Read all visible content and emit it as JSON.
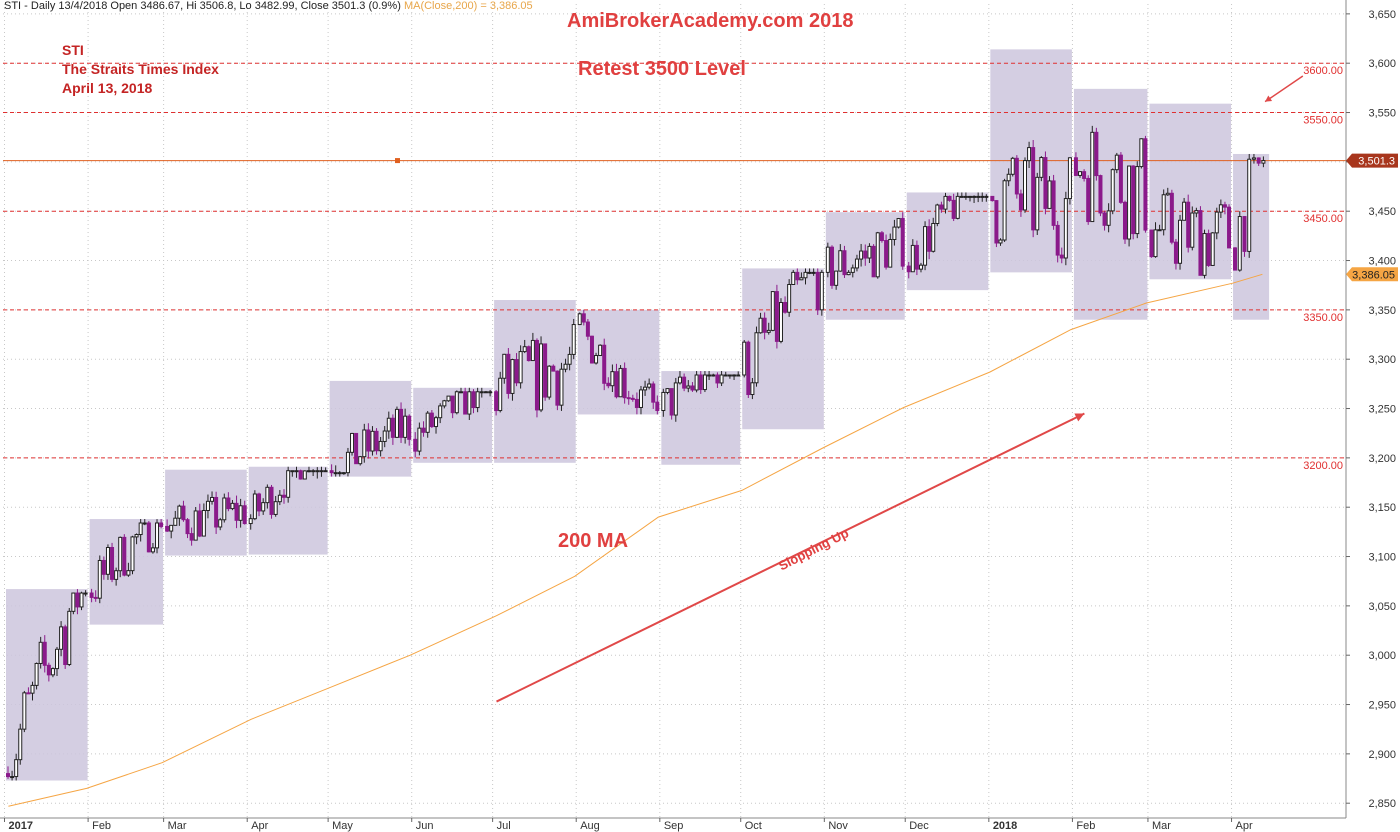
{
  "header": {
    "quote": "STI - Daily 13/4/2018 Open 3486.67, Hi 3506.8, Lo 3482.99, Close 3501.3 (0.9%)",
    "ma": "MA(Close,200) = 3,386.05"
  },
  "annotations": {
    "brand": "AmiBrokerAcademy.com  2018",
    "retest": "Retest 3500 Level",
    "ma_label": "200 MA",
    "slope": "Slopping Up",
    "symbol": "STI",
    "index_name": "The Straits Times Index",
    "date": "April 13, 2018"
  },
  "colors": {
    "up_candle": "#222222",
    "down_candle": "#8b1a8b",
    "ma_line": "#f5a544",
    "close_line": "#e06020",
    "level_line": "#e03030",
    "range_box": "#cdc6dd",
    "arrow": "#e04848",
    "close_badge": "#a8361d",
    "ma_badge": "#f5a544"
  },
  "chart_data": {
    "type": "candlestick",
    "ylim": [
      2835,
      3660
    ],
    "y_ticks": [
      2850,
      2900,
      2950,
      3000,
      3050,
      3100,
      3150,
      3200,
      3250,
      3300,
      3350,
      3400,
      3450,
      3500,
      3550,
      3600,
      3650
    ],
    "y_tick_labels": [
      "2,850",
      "2,900",
      "2,950",
      "3,000",
      "3,050",
      "3,100",
      "3,150",
      "3,200",
      "3,250",
      "3,300",
      "3,350",
      "3,400",
      "3,450",
      "3,500",
      "3,550",
      "3,600",
      "3,650"
    ],
    "x_labels": [
      "2017",
      "Feb",
      "Mar",
      "Apr",
      "May",
      "Jun",
      "Jul",
      "Aug",
      "Sep",
      "Oct",
      "Nov",
      "Dec",
      "2018",
      "Feb",
      "Mar",
      "Apr"
    ],
    "x_labels_bold": [
      "2017",
      "2018"
    ],
    "level_lines": [
      {
        "value": 3600,
        "label": "3600.00"
      },
      {
        "value": 3550,
        "label": "3550.00"
      },
      {
        "value": 3450,
        "label": "3450.00"
      },
      {
        "value": 3350,
        "label": "3350.00"
      },
      {
        "value": 3200,
        "label": "3200.00"
      }
    ],
    "last_close": {
      "value": 3501.3,
      "label": "3,501.3"
    },
    "ma200": {
      "value": 3386.05,
      "label": "3,386.05"
    },
    "monthly_ranges": [
      {
        "month": "Jan 2017",
        "low": 2873,
        "high": 3067
      },
      {
        "month": "Feb 2017",
        "low": 3031,
        "high": 3138
      },
      {
        "month": "Mar 2017",
        "low": 3101,
        "high": 3188
      },
      {
        "month": "Apr 2017",
        "low": 3102,
        "high": 3191
      },
      {
        "month": "May 2017",
        "low": 3181,
        "high": 3278
      },
      {
        "month": "Jun 2017",
        "low": 3195,
        "high": 3271
      },
      {
        "month": "Jul 2017",
        "low": 3195,
        "high": 3360
      },
      {
        "month": "Aug 2017",
        "low": 3244,
        "high": 3350
      },
      {
        "month": "Sep 2017",
        "low": 3193,
        "high": 3288
      },
      {
        "month": "Oct 2017",
        "low": 3229,
        "high": 3392
      },
      {
        "month": "Nov 2017",
        "low": 3340,
        "high": 3449
      },
      {
        "month": "Dec 2017",
        "low": 3370,
        "high": 3469
      },
      {
        "month": "Jan 2018",
        "low": 3388,
        "high": 3614
      },
      {
        "month": "Feb 2018",
        "low": 3340,
        "high": 3574
      },
      {
        "month": "Mar 2018",
        "low": 3381,
        "high": 3559
      },
      {
        "month": "Apr 2018",
        "low": 3340,
        "high": 3508
      }
    ],
    "ma200_series": {
      "x": [
        "2017-01-03",
        "2017-02-01",
        "2017-03-01",
        "2017-04-03",
        "2017-05-02",
        "2017-06-01",
        "2017-07-03",
        "2017-08-01",
        "2017-09-01",
        "2017-10-02",
        "2017-11-01",
        "2017-12-01",
        "2018-01-02",
        "2018-02-01",
        "2018-03-01",
        "2018-04-02",
        "2018-04-13"
      ],
      "values": [
        2847,
        2865,
        2891,
        2935,
        2967,
        3000,
        3040,
        3080,
        3140,
        3167,
        3210,
        3251,
        3287,
        3330,
        3357,
        3377,
        3386
      ]
    },
    "trend_arrow": {
      "from": [
        "2017-07-03",
        2953
      ],
      "to": [
        "2018-02-06",
        3245
      ]
    }
  }
}
